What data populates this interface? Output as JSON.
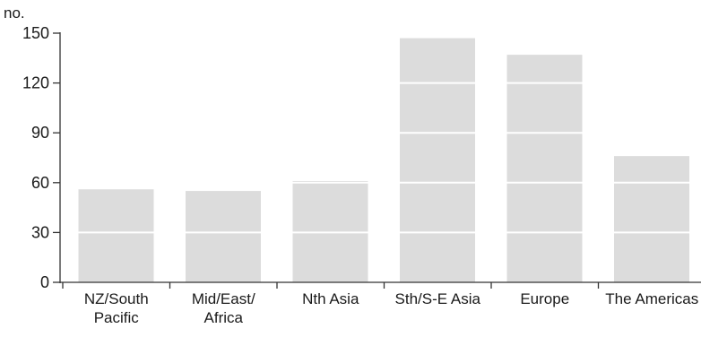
{
  "chart_data": {
    "type": "bar",
    "ylabel": "no.",
    "ylim": [
      0,
      150
    ],
    "yticks": [
      0,
      30,
      60,
      90,
      120,
      150
    ],
    "grid": "white horizontal lines across bars",
    "bar_color": "#dcdcdc",
    "axis_color": "#333333",
    "categories": [
      [
        "NZ/South",
        "Pacific"
      ],
      [
        "Mid/East/",
        "Africa"
      ],
      [
        "Nth Asia"
      ],
      [
        "Sth/S-E Asia"
      ],
      [
        "Europe"
      ],
      [
        "The Americas"
      ]
    ],
    "values": [
      56,
      55,
      61,
      147,
      137,
      76
    ]
  }
}
